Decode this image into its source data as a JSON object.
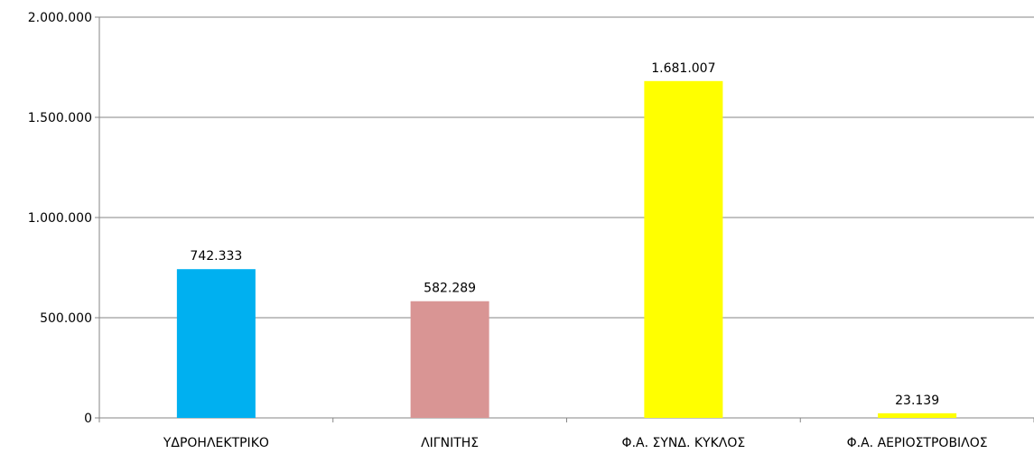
{
  "chart_data": {
    "type": "bar",
    "title": "",
    "xlabel": "",
    "ylabel": "",
    "categories": [
      "ΥΔΡΟΗΛΕΚΤΡΙΚΟ",
      "ΛΙΓΝΙΤΗΣ",
      "Φ.Α. ΣΥΝΔ. ΚΥΚΛΟΣ",
      "Φ.Α. ΑΕΡΙΟΣΤΡΟΒΙΛΟΣ"
    ],
    "values": [
      742333,
      582289,
      1681007,
      23139
    ],
    "value_labels": [
      "742.333",
      "582.289",
      "1.681.007",
      "23.139"
    ],
    "bar_colors": [
      "#00b0f0",
      "#d99594",
      "#ffff00",
      "#ffff00"
    ],
    "ylim": [
      0,
      2000000
    ],
    "yticks": [
      0,
      500000,
      1000000,
      1500000,
      2000000
    ],
    "ytick_labels": [
      "0",
      "500.000",
      "1.000.000",
      "1.500.000",
      "2.000.000"
    ],
    "grid": true,
    "legend": "none"
  }
}
